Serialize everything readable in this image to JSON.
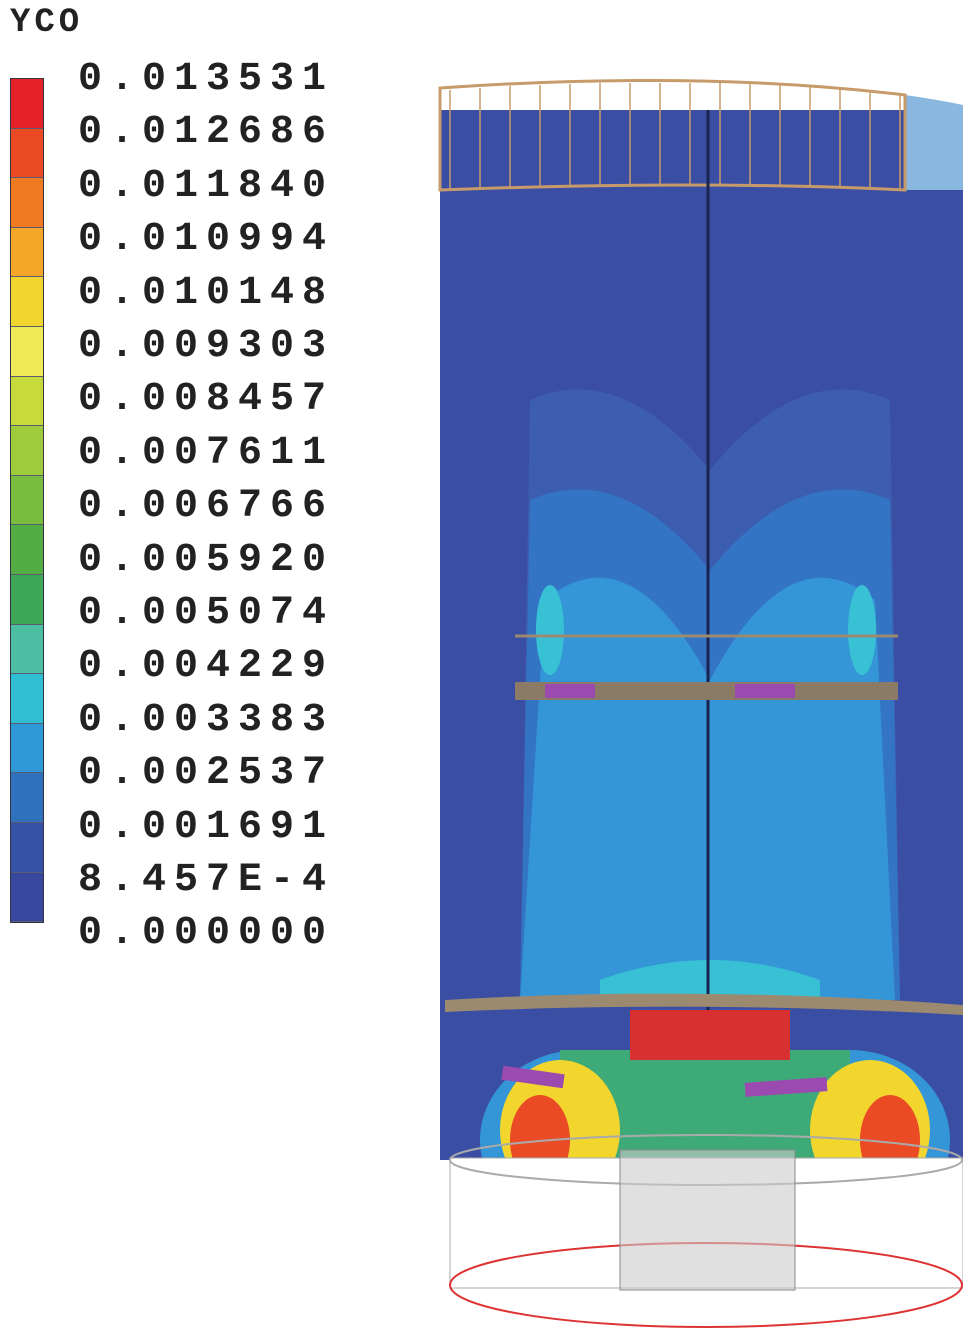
{
  "title": "YCO",
  "legend": {
    "labels": [
      "0.013531",
      "0.012686",
      "0.011840",
      "0.010994",
      "0.010148",
      "0.009303",
      "0.008457",
      "0.007611",
      "0.006766",
      "0.005920",
      "0.005074",
      "0.004229",
      "0.003383",
      "0.002537",
      "0.001691",
      "8.457E-4",
      "0.000000"
    ],
    "colors": [
      "#e52228",
      "#ea4b24",
      "#ef7a22",
      "#f4a628",
      "#f2d62e",
      "#efea55",
      "#c6da3c",
      "#9ecb3c",
      "#78bd3d",
      "#52ae42",
      "#3ea858",
      "#4cbfa2",
      "#30bfd2",
      "#2f98d6",
      "#3071bd",
      "#3552a6",
      "#38489e"
    ]
  }
}
